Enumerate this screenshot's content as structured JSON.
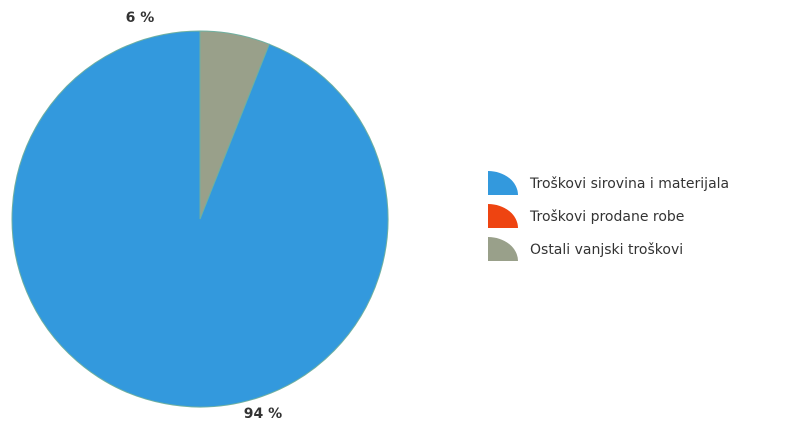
{
  "chart_data": {
    "type": "pie",
    "categories": [
      "Troškovi sirovina i materijala",
      "Troškovi prodane robe",
      "Ostali vanjski troškovi"
    ],
    "values": [
      94,
      0,
      6
    ],
    "value_labels": [
      "94 %",
      "",
      "6 %"
    ],
    "colors": [
      "#3399dd",
      "#ee4411",
      "#99a08a"
    ],
    "legend_placement": "right"
  }
}
